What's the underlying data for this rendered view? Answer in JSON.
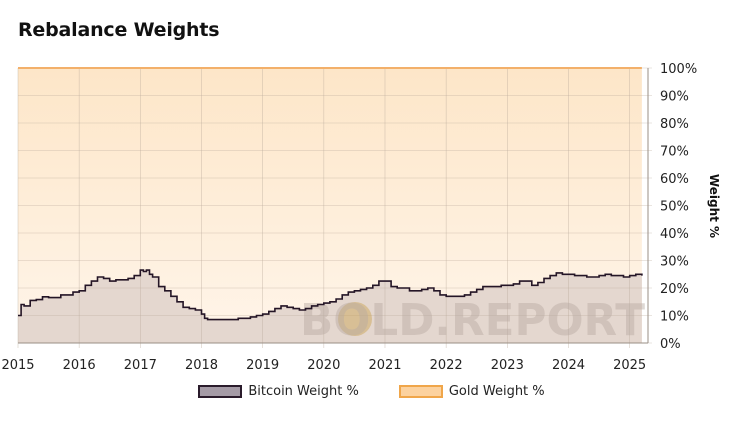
{
  "title": "Rebalance Weights",
  "watermark": "BOLD.REPORT",
  "colors": {
    "bitcoin_fill": "#e4d7cf",
    "bitcoin_line": "#241526",
    "gold_fill_top": "#fde6c8",
    "gold_fill_bottom": "#fff3e6",
    "gold_line": "#f3b06a",
    "bitcoin_swatch": "#a59ba6",
    "gold_swatch": "#fcd29f"
  },
  "chart_data": {
    "type": "area",
    "stacked": true,
    "title": "Rebalance Weights",
    "xlabel": "",
    "ylabel": "Weight %",
    "xlim": [
      2015.0,
      2025.3
    ],
    "ylim": [
      0,
      100
    ],
    "x_ticks": [
      "2015",
      "2016",
      "2017",
      "2018",
      "2019",
      "2020",
      "2021",
      "2022",
      "2023",
      "2024",
      "2025"
    ],
    "y_ticks": [
      "0%",
      "10%",
      "20%",
      "30%",
      "40%",
      "50%",
      "60%",
      "70%",
      "80%",
      "90%",
      "100%"
    ],
    "grid": true,
    "legend_position": "bottom",
    "x": [
      2015.0,
      2015.05,
      2015.1,
      2015.2,
      2015.3,
      2015.4,
      2015.5,
      2015.7,
      2015.9,
      2016.0,
      2016.1,
      2016.2,
      2016.3,
      2016.4,
      2016.5,
      2016.6,
      2016.7,
      2016.8,
      2016.9,
      2017.0,
      2017.05,
      2017.1,
      2017.15,
      2017.2,
      2017.3,
      2017.4,
      2017.5,
      2017.6,
      2017.7,
      2017.8,
      2017.9,
      2018.0,
      2018.05,
      2018.1,
      2018.2,
      2018.3,
      2018.4,
      2018.5,
      2018.6,
      2018.7,
      2018.8,
      2018.9,
      2019.0,
      2019.1,
      2019.2,
      2019.3,
      2019.4,
      2019.5,
      2019.6,
      2019.7,
      2019.8,
      2019.9,
      2020.0,
      2020.1,
      2020.2,
      2020.3,
      2020.4,
      2020.5,
      2020.6,
      2020.7,
      2020.8,
      2020.9,
      2021.0,
      2021.1,
      2021.2,
      2021.3,
      2021.4,
      2021.5,
      2021.6,
      2021.7,
      2021.8,
      2021.9,
      2022.0,
      2022.1,
      2022.2,
      2022.3,
      2022.4,
      2022.5,
      2022.6,
      2022.7,
      2022.8,
      2022.9,
      2023.0,
      2023.1,
      2023.2,
      2023.3,
      2023.4,
      2023.5,
      2023.6,
      2023.7,
      2023.8,
      2023.9,
      2024.0,
      2024.1,
      2024.2,
      2024.3,
      2024.4,
      2024.5,
      2024.6,
      2024.7,
      2024.8,
      2024.9,
      2025.0,
      2025.1,
      2025.2
    ],
    "series": [
      {
        "name": "Bitcoin Weight %",
        "values": [
          10.0,
          14.0,
          13.5,
          15.5,
          15.8,
          16.8,
          16.5,
          17.5,
          18.5,
          19.0,
          21.0,
          22.5,
          24.0,
          23.5,
          22.5,
          23.0,
          23.0,
          23.5,
          24.5,
          26.5,
          26.0,
          26.5,
          25.0,
          24.0,
          20.5,
          19.0,
          17.0,
          15.0,
          13.0,
          12.5,
          12.0,
          10.5,
          9.0,
          8.5,
          8.5,
          8.5,
          8.5,
          8.5,
          9.0,
          9.0,
          9.5,
          10.0,
          10.5,
          11.5,
          12.5,
          13.5,
          13.0,
          12.5,
          12.0,
          12.5,
          13.5,
          14.0,
          14.5,
          15.0,
          16.0,
          17.5,
          18.5,
          19.0,
          19.5,
          20.0,
          21.0,
          22.5,
          22.5,
          20.5,
          20.0,
          20.0,
          19.0,
          19.0,
          19.5,
          20.0,
          19.0,
          17.5,
          17.0,
          17.0,
          17.0,
          17.5,
          18.5,
          19.5,
          20.5,
          20.5,
          20.5,
          21.0,
          21.0,
          21.5,
          22.5,
          22.5,
          21.0,
          22.0,
          23.5,
          24.5,
          25.5,
          25.0,
          25.0,
          24.5,
          24.5,
          24.0,
          24.0,
          24.5,
          25.0,
          24.5,
          24.5,
          24.0,
          24.5,
          25.0,
          24.5
        ]
      },
      {
        "name": "Gold Weight %",
        "values": [
          90.0,
          86.0,
          86.5,
          84.5,
          84.2,
          83.2,
          83.5,
          82.5,
          81.5,
          81.0,
          79.0,
          77.5,
          76.0,
          76.5,
          77.5,
          77.0,
          77.0,
          76.5,
          75.5,
          73.5,
          74.0,
          73.5,
          75.0,
          76.0,
          79.5,
          81.0,
          83.0,
          85.0,
          87.0,
          87.5,
          88.0,
          89.5,
          91.0,
          91.5,
          91.5,
          91.5,
          91.5,
          91.5,
          91.0,
          91.0,
          90.5,
          90.0,
          89.5,
          88.5,
          87.5,
          86.5,
          87.0,
          87.5,
          88.0,
          87.5,
          86.5,
          86.0,
          85.5,
          85.0,
          84.0,
          82.5,
          81.5,
          81.0,
          80.5,
          80.0,
          79.0,
          77.5,
          77.5,
          79.5,
          80.0,
          80.0,
          81.0,
          81.0,
          80.5,
          80.0,
          81.0,
          82.5,
          83.0,
          83.0,
          83.0,
          82.5,
          81.5,
          80.5,
          79.5,
          79.5,
          79.5,
          79.0,
          79.0,
          78.5,
          77.5,
          77.5,
          79.0,
          78.0,
          76.5,
          75.5,
          74.5,
          75.0,
          75.0,
          75.5,
          75.5,
          76.0,
          76.0,
          75.5,
          75.0,
          75.5,
          75.5,
          76.0,
          75.5,
          75.0,
          75.5
        ]
      }
    ]
  }
}
